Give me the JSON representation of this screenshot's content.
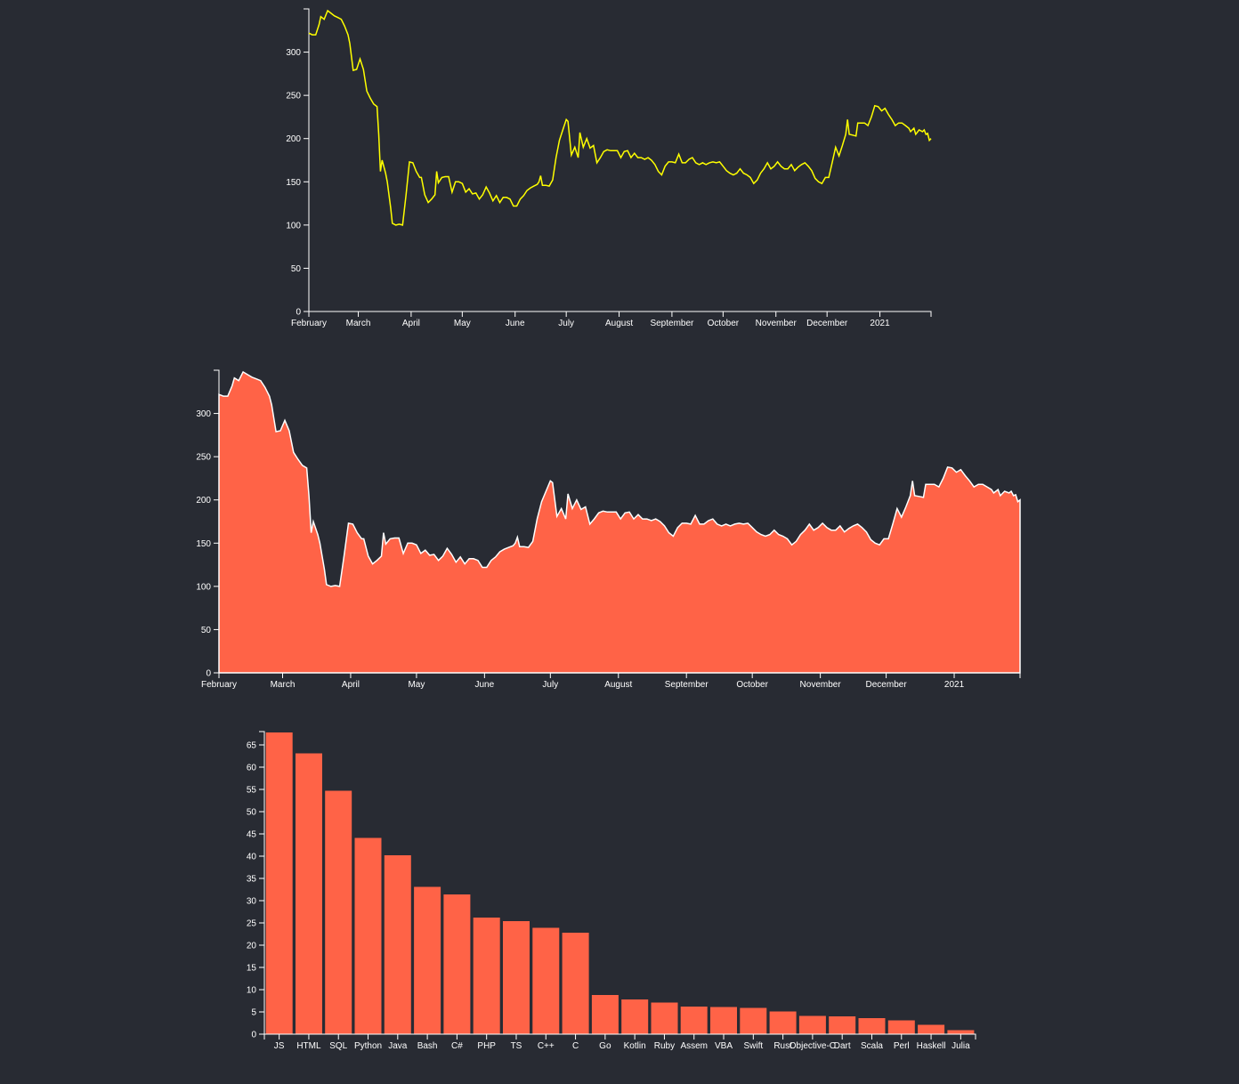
{
  "colors": {
    "background": "#282b33",
    "line": "#ffff00",
    "area_fill": "#ff6347",
    "area_stroke": "#ffffff",
    "bar_fill": "#ff6347",
    "axis": "#ffffff"
  },
  "chart_data": [
    {
      "type": "line",
      "title": "",
      "xlabel": "",
      "ylabel": "",
      "x_ticks": [
        "February",
        "March",
        "April",
        "May",
        "June",
        "July",
        "August",
        "September",
        "October",
        "November",
        "December",
        "2021"
      ],
      "y_ticks": [
        0,
        50,
        100,
        150,
        200,
        250,
        300
      ],
      "ylim": [
        0,
        350
      ],
      "xlim": [
        "2020-02-01",
        "2021-01-31"
      ],
      "series": [
        {
          "values": [
            [
              "2020-02-01",
              322
            ],
            [
              "2020-02-03",
              320
            ],
            [
              "2020-02-05",
              320
            ],
            [
              "2020-02-07",
              332
            ],
            [
              "2020-02-08",
              341
            ],
            [
              "2020-02-10",
              338
            ],
            [
              "2020-02-12",
              348
            ],
            [
              "2020-02-14",
              345
            ],
            [
              "2020-02-16",
              342
            ],
            [
              "2020-02-18",
              340
            ],
            [
              "2020-02-20",
              338
            ],
            [
              "2020-02-22",
              330
            ],
            [
              "2020-02-24",
              320
            ],
            [
              "2020-02-25",
              310
            ],
            [
              "2020-02-27",
              279
            ],
            [
              "2020-02-29",
              280
            ],
            [
              "2020-03-02",
              292
            ],
            [
              "2020-03-04",
              280
            ],
            [
              "2020-03-06",
              255
            ],
            [
              "2020-03-08",
              247
            ],
            [
              "2020-03-10",
              240
            ],
            [
              "2020-03-12",
              237
            ],
            [
              "2020-03-13",
              205
            ],
            [
              "2020-03-14",
              162
            ],
            [
              "2020-03-15",
              175
            ],
            [
              "2020-03-17",
              160
            ],
            [
              "2020-03-18",
              150
            ],
            [
              "2020-03-20",
              120
            ],
            [
              "2020-03-21",
              102
            ],
            [
              "2020-03-23",
              100
            ],
            [
              "2020-03-25",
              101
            ],
            [
              "2020-03-27",
              100
            ],
            [
              "2020-03-29",
              135
            ],
            [
              "2020-03-31",
              173
            ],
            [
              "2020-04-02",
              172
            ],
            [
              "2020-04-04",
              162
            ],
            [
              "2020-04-06",
              155
            ],
            [
              "2020-04-07",
              155
            ],
            [
              "2020-04-09",
              135
            ],
            [
              "2020-04-11",
              126
            ],
            [
              "2020-04-13",
              130
            ],
            [
              "2020-04-15",
              135
            ],
            [
              "2020-04-16",
              162
            ],
            [
              "2020-04-17",
              149
            ],
            [
              "2020-04-19",
              155
            ],
            [
              "2020-04-21",
              156
            ],
            [
              "2020-04-23",
              156
            ],
            [
              "2020-04-25",
              138
            ],
            [
              "2020-04-27",
              150
            ],
            [
              "2020-04-29",
              150
            ],
            [
              "2020-05-01",
              148
            ],
            [
              "2020-05-03",
              138
            ],
            [
              "2020-05-05",
              142
            ],
            [
              "2020-05-07",
              136
            ],
            [
              "2020-05-09",
              137
            ],
            [
              "2020-05-11",
              130
            ],
            [
              "2020-05-13",
              135
            ],
            [
              "2020-05-15",
              144
            ],
            [
              "2020-05-17",
              137
            ],
            [
              "2020-05-19",
              128
            ],
            [
              "2020-05-21",
              134
            ],
            [
              "2020-05-23",
              126
            ],
            [
              "2020-05-25",
              132
            ],
            [
              "2020-05-27",
              132
            ],
            [
              "2020-05-29",
              130
            ],
            [
              "2020-05-31",
              122
            ],
            [
              "2020-06-02",
              122
            ],
            [
              "2020-06-04",
              130
            ],
            [
              "2020-06-06",
              134
            ],
            [
              "2020-06-08",
              140
            ],
            [
              "2020-06-10",
              143
            ],
            [
              "2020-06-12",
              145
            ],
            [
              "2020-06-14",
              147
            ],
            [
              "2020-06-15",
              150
            ],
            [
              "2020-06-16",
              157
            ],
            [
              "2020-06-17",
              146
            ],
            [
              "2020-06-19",
              146
            ],
            [
              "2020-06-21",
              145
            ],
            [
              "2020-06-23",
              152
            ],
            [
              "2020-06-25",
              178
            ],
            [
              "2020-06-27",
              198
            ],
            [
              "2020-06-29",
              210
            ],
            [
              "2020-07-01",
              222
            ],
            [
              "2020-07-02",
              220
            ],
            [
              "2020-07-04",
              181
            ],
            [
              "2020-07-06",
              190
            ],
            [
              "2020-07-08",
              178
            ],
            [
              "2020-07-09",
              207
            ],
            [
              "2020-07-11",
              190
            ],
            [
              "2020-07-13",
              200
            ],
            [
              "2020-07-15",
              189
            ],
            [
              "2020-07-17",
              192
            ],
            [
              "2020-07-19",
              172
            ],
            [
              "2020-07-21",
              178
            ],
            [
              "2020-07-23",
              185
            ],
            [
              "2020-07-25",
              187
            ],
            [
              "2020-07-27",
              186
            ],
            [
              "2020-07-29",
              186
            ],
            [
              "2020-07-31",
              186
            ],
            [
              "2020-08-02",
              178
            ],
            [
              "2020-08-04",
              185
            ],
            [
              "2020-08-06",
              186
            ],
            [
              "2020-08-08",
              178
            ],
            [
              "2020-08-10",
              183
            ],
            [
              "2020-08-12",
              178
            ],
            [
              "2020-08-14",
              178
            ],
            [
              "2020-08-16",
              176
            ],
            [
              "2020-08-18",
              178
            ],
            [
              "2020-08-20",
              175
            ],
            [
              "2020-08-22",
              170
            ],
            [
              "2020-08-24",
              162
            ],
            [
              "2020-08-26",
              158
            ],
            [
              "2020-08-28",
              168
            ],
            [
              "2020-08-30",
              173
            ],
            [
              "2020-09-01",
              173
            ],
            [
              "2020-09-03",
              172
            ],
            [
              "2020-09-05",
              182
            ],
            [
              "2020-09-07",
              172
            ],
            [
              "2020-09-09",
              172
            ],
            [
              "2020-09-11",
              176
            ],
            [
              "2020-09-13",
              178
            ],
            [
              "2020-09-15",
              172
            ],
            [
              "2020-09-17",
              170
            ],
            [
              "2020-09-19",
              172
            ],
            [
              "2020-09-21",
              170
            ],
            [
              "2020-09-23",
              172
            ],
            [
              "2020-09-25",
              173
            ],
            [
              "2020-09-27",
              172
            ],
            [
              "2020-09-29",
              173
            ],
            [
              "2020-10-01",
              168
            ],
            [
              "2020-10-03",
              163
            ],
            [
              "2020-10-05",
              160
            ],
            [
              "2020-10-07",
              158
            ],
            [
              "2020-10-09",
              160
            ],
            [
              "2020-10-11",
              165
            ],
            [
              "2020-10-13",
              160
            ],
            [
              "2020-10-15",
              158
            ],
            [
              "2020-10-17",
              155
            ],
            [
              "2020-10-19",
              148
            ],
            [
              "2020-10-21",
              152
            ],
            [
              "2020-10-23",
              160
            ],
            [
              "2020-10-25",
              165
            ],
            [
              "2020-10-27",
              172
            ],
            [
              "2020-10-29",
              165
            ],
            [
              "2020-10-31",
              168
            ],
            [
              "2020-11-02",
              173
            ],
            [
              "2020-11-04",
              168
            ],
            [
              "2020-11-06",
              165
            ],
            [
              "2020-11-08",
              165
            ],
            [
              "2020-11-10",
              170
            ],
            [
              "2020-11-12",
              163
            ],
            [
              "2020-11-14",
              167
            ],
            [
              "2020-11-16",
              170
            ],
            [
              "2020-11-18",
              172
            ],
            [
              "2020-11-20",
              168
            ],
            [
              "2020-11-22",
              163
            ],
            [
              "2020-11-24",
              154
            ],
            [
              "2020-11-26",
              150
            ],
            [
              "2020-11-28",
              148
            ],
            [
              "2020-11-30",
              155
            ],
            [
              "2020-12-02",
              155
            ],
            [
              "2020-12-04",
              172
            ],
            [
              "2020-12-06",
              190
            ],
            [
              "2020-12-08",
              180
            ],
            [
              "2020-12-10",
              192
            ],
            [
              "2020-12-12",
              205
            ],
            [
              "2020-12-13",
              222
            ],
            [
              "2020-12-14",
              205
            ],
            [
              "2020-12-16",
              204
            ],
            [
              "2020-12-18",
              203
            ],
            [
              "2020-12-19",
              218
            ],
            [
              "2020-12-21",
              218
            ],
            [
              "2020-12-23",
              218
            ],
            [
              "2020-12-25",
              215
            ],
            [
              "2020-12-27",
              225
            ],
            [
              "2020-12-29",
              238
            ],
            [
              "2020-12-31",
              237
            ],
            [
              "2021-01-02",
              232
            ],
            [
              "2021-01-04",
              235
            ],
            [
              "2021-01-06",
              228
            ],
            [
              "2021-01-08",
              222
            ],
            [
              "2021-01-10",
              215
            ],
            [
              "2021-01-12",
              218
            ],
            [
              "2021-01-14",
              218
            ],
            [
              "2021-01-16",
              215
            ],
            [
              "2021-01-18",
              212
            ],
            [
              "2021-01-19",
              208
            ],
            [
              "2021-01-21",
              212
            ],
            [
              "2021-01-22",
              205
            ],
            [
              "2021-01-24",
              210
            ],
            [
              "2021-01-26",
              208
            ],
            [
              "2021-01-27",
              210
            ],
            [
              "2021-01-28",
              205
            ],
            [
              "2021-01-29",
              206
            ],
            [
              "2021-01-30",
              198
            ],
            [
              "2021-01-31",
              200
            ]
          ]
        }
      ]
    },
    {
      "type": "area",
      "title": "",
      "xlabel": "",
      "ylabel": "",
      "x_ticks": [
        "February",
        "March",
        "April",
        "May",
        "June",
        "July",
        "August",
        "September",
        "October",
        "November",
        "December",
        "2021"
      ],
      "y_ticks": [
        0,
        50,
        100,
        150,
        200,
        250,
        300
      ],
      "ylim": [
        0,
        350
      ],
      "xlim": [
        "2020-02-01",
        "2021-01-31"
      ],
      "series_ref": "same data as line chart"
    },
    {
      "type": "bar",
      "title": "",
      "xlabel": "",
      "ylabel": "",
      "categories": [
        "JS",
        "HTML",
        "SQL",
        "Python",
        "Java",
        "Bash",
        "C#",
        "PHP",
        "TS",
        "C++",
        "C",
        "Go",
        "Kotlin",
        "Ruby",
        "Assem",
        "VBA",
        "Swift",
        "Rust",
        "Objective-C",
        "Dart",
        "Scala",
        "Perl",
        "Haskell",
        "Julia"
      ],
      "values": [
        67.8,
        63.1,
        54.7,
        44.1,
        40.2,
        33.1,
        31.4,
        26.2,
        25.4,
        23.9,
        22.8,
        8.8,
        7.8,
        7.1,
        6.2,
        6.1,
        5.9,
        5.1,
        4.1,
        4.0,
        3.6,
        3.1,
        2.1,
        0.9
      ],
      "y_ticks": [
        0,
        5,
        10,
        15,
        20,
        25,
        30,
        35,
        40,
        45,
        50,
        55,
        60,
        65
      ],
      "ylim": [
        0,
        68
      ]
    }
  ]
}
